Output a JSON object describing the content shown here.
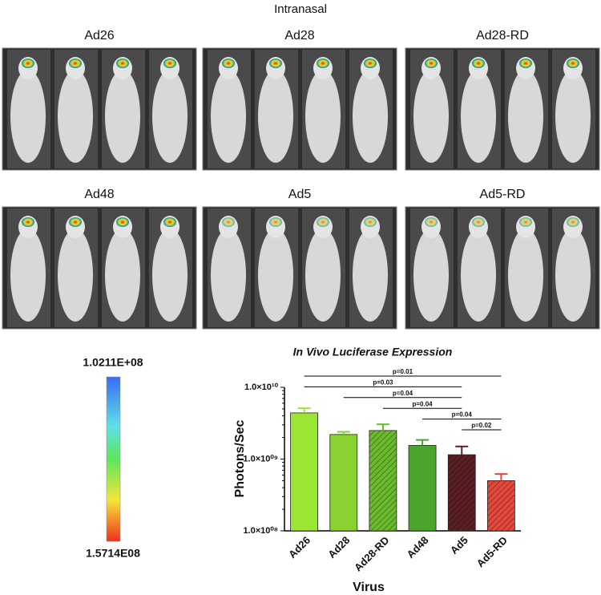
{
  "figure_title": "Intranasal",
  "panels": [
    {
      "label": "Ad26"
    },
    {
      "label": "Ad28"
    },
    {
      "label": "Ad28-RD"
    },
    {
      "label": "Ad48"
    },
    {
      "label": "Ad5"
    },
    {
      "label": "Ad5-RD"
    }
  ],
  "colorbar": {
    "max_label": "1.0211E+08",
    "min_label": "1.5714E08"
  },
  "chart_data": {
    "type": "bar",
    "title": "In Vivo Luciferase Expression",
    "x_label": "Virus",
    "y_label": "Photons/Sec",
    "categories": [
      "Ad26",
      "Ad28",
      "Ad28-RD",
      "Ad48",
      "Ad5",
      "Ad5-RD"
    ],
    "values": [
      4400000000,
      2200000000,
      2500000000,
      1550000000,
      1150000000,
      500000000
    ],
    "errors": [
      700000000,
      200000000,
      550000000,
      300000000,
      350000000,
      120000000
    ],
    "colors": [
      "#9be635",
      "#8ad232",
      "#6cbb2e",
      "#4ba52c",
      "#5a1f22",
      "#e4473c"
    ],
    "hatch": [
      false,
      false,
      true,
      false,
      true,
      true
    ],
    "log_scale": true,
    "ylim": [
      100000000,
      10000000000
    ],
    "yticks": [
      {
        "value": 100000000,
        "label": "1.0×10⁰⁸"
      },
      {
        "value": 1000000000,
        "label": "1.0×10⁰⁹"
      },
      {
        "value": 10000000000,
        "label": "1.0×10¹⁰"
      }
    ],
    "significance": [
      {
        "from": 0,
        "to": 5,
        "label": "p=0.01"
      },
      {
        "from": 0,
        "to": 4,
        "label": "p=0.03"
      },
      {
        "from": 1,
        "to": 4,
        "label": "p=0.04"
      },
      {
        "from": 2,
        "to": 4,
        "label": "p=0.04"
      },
      {
        "from": 3,
        "to": 5,
        "label": "p=0.04"
      },
      {
        "from": 4,
        "to": 5,
        "label": "p=0.02"
      }
    ]
  }
}
